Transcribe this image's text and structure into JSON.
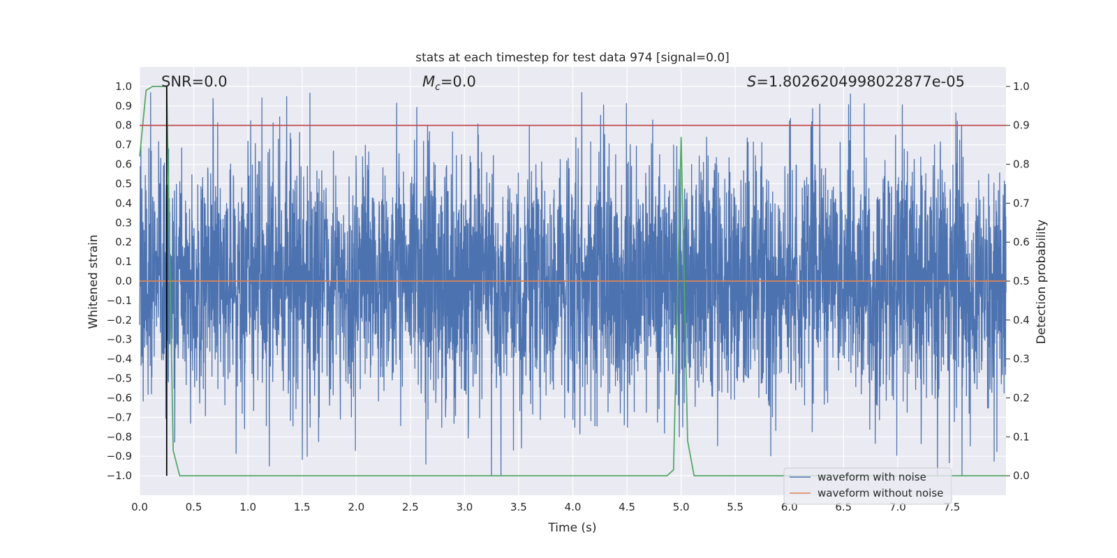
{
  "chart_data": {
    "type": "line",
    "title": "stats at each timestep for test data 974 [signal=0.0]",
    "xlabel": "Time (s)",
    "ylabel": "Whitened strain",
    "y2label": "Detection probability",
    "xlim": [
      0.0,
      8.0
    ],
    "ylim": [
      -1.1,
      1.1
    ],
    "y2lim": [
      -0.05,
      1.05
    ],
    "x_ticks": [
      "0.0",
      "0.5",
      "1.0",
      "1.5",
      "2.0",
      "2.5",
      "3.0",
      "3.5",
      "4.0",
      "4.5",
      "5.0",
      "5.5",
      "6.0",
      "6.5",
      "7.0",
      "7.5"
    ],
    "y_ticks": [
      "1.0",
      "0.9",
      "0.8",
      "0.7",
      "0.6",
      "0.5",
      "0.4",
      "0.3",
      "0.2",
      "0.1",
      "0.0",
      "−0.1",
      "−0.2",
      "−0.3",
      "−0.4",
      "−0.5",
      "−0.6",
      "−0.7",
      "−0.8",
      "−0.9",
      "−1.0"
    ],
    "y2_ticks": [
      "1.0",
      "0.9",
      "0.8",
      "0.7",
      "0.6",
      "0.5",
      "0.4",
      "0.3",
      "0.2",
      "0.1",
      "0.0"
    ],
    "grid": true,
    "annotations": {
      "snr": "SNR=0.0",
      "mc_symbol": "M",
      "mc_sub": "c",
      "mc_value": "=0.0",
      "s_symbol": "S",
      "s_value": "=1.8026204998022877e-05"
    },
    "legend": {
      "placement": "lower-right",
      "entries": [
        "waveform with noise",
        "waveform without noise"
      ]
    },
    "series": [
      {
        "name": "waveform with noise",
        "color": "#4c72b0",
        "axis": "left",
        "kind": "noise",
        "samples": 4096,
        "seed": 974,
        "x_range": [
          0.0,
          8.0
        ],
        "approx_range": [
          -1.0,
          0.97
        ]
      },
      {
        "name": "waveform without noise",
        "color": "#dd8452",
        "axis": "left",
        "x": [
          0.0,
          8.0
        ],
        "y": [
          0.0,
          0.0
        ]
      },
      {
        "name": "detection probability",
        "color": "#55a868",
        "axis": "right",
        "x": [
          0.0,
          0.06,
          0.12,
          0.25,
          0.31,
          0.37,
          0.5,
          1.0,
          2.0,
          3.0,
          4.0,
          4.87,
          4.93,
          5.0,
          5.06,
          5.12,
          5.5,
          6.0,
          7.0,
          8.0
        ],
        "y": [
          0.82,
          0.99,
          1.0,
          1.0,
          0.065,
          0.0,
          0.0,
          0.0,
          0.0,
          0.0,
          0.0,
          0.0,
          0.015,
          0.87,
          0.09,
          0.0,
          0.0,
          0.0,
          0.0,
          0.0
        ]
      },
      {
        "name": "threshold",
        "color": "#c44e52",
        "axis": "right",
        "x": [
          0.0,
          8.0
        ],
        "y": [
          0.9,
          0.9
        ]
      },
      {
        "name": "marker",
        "color": "#000000",
        "axis": "left",
        "x": [
          0.25,
          0.25
        ],
        "y": [
          -1.0,
          1.0
        ]
      }
    ]
  }
}
